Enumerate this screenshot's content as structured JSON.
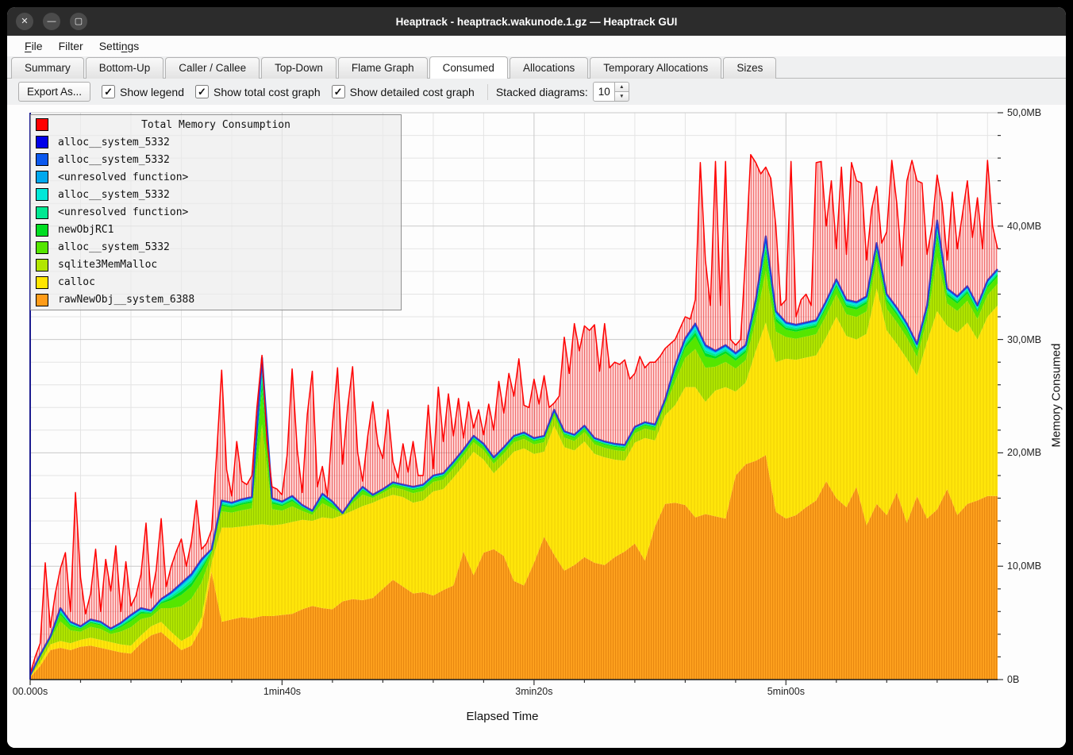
{
  "window": {
    "title": "Heaptrack - heaptrack.wakunode.1.gz — Heaptrack GUI",
    "controls": [
      {
        "name": "close",
        "glyph": "✕"
      },
      {
        "name": "minimize",
        "glyph": "—"
      },
      {
        "name": "maximize",
        "glyph": "▢"
      }
    ]
  },
  "menu": {
    "items": [
      {
        "label": "File",
        "underline": 0
      },
      {
        "label": "Filter",
        "underline": -1
      },
      {
        "label": "Settings",
        "underline": 5
      }
    ]
  },
  "tabs": {
    "active": "Consumed",
    "items": [
      "Summary",
      "Bottom-Up",
      "Caller / Callee",
      "Top-Down",
      "Flame Graph",
      "Consumed",
      "Allocations",
      "Temporary Allocations",
      "Sizes"
    ]
  },
  "toolbar": {
    "export_label": "Export As...",
    "check_glyph": "✓",
    "spin_up_icon": "▲",
    "spin_down_icon": "▼",
    "checkboxes": [
      {
        "label": "Show legend",
        "checked": true
      },
      {
        "label": "Show total cost graph",
        "checked": true
      },
      {
        "label": "Show detailed cost graph",
        "checked": true
      }
    ],
    "stacked_label": "Stacked diagrams:",
    "stacked_value": "10"
  },
  "legend": {
    "entries": [
      {
        "label": "Total Memory Consumption",
        "color": "#ff0000",
        "header": true
      },
      {
        "label": "alloc__system_5332",
        "color": "#0000e8"
      },
      {
        "label": "alloc__system_5332",
        "color": "#0a58ee"
      },
      {
        "label": "<unresolved function>",
        "color": "#00a8ee"
      },
      {
        "label": "alloc__system_5332",
        "color": "#00e8d8"
      },
      {
        "label": "<unresolved function>",
        "color": "#00e892"
      },
      {
        "label": "newObjRC1",
        "color": "#00dd22"
      },
      {
        "label": "alloc__system_5332",
        "color": "#55e600"
      },
      {
        "label": "sqlite3MemMalloc",
        "color": "#b2e600"
      },
      {
        "label": "calloc",
        "color": "#ffe600"
      },
      {
        "label": "rawNewObj__system_6388",
        "color": "#ff9c19"
      }
    ]
  },
  "axes": {
    "y_title": "Memory Consumed",
    "x_title": "Elapsed Time",
    "y_ticks": [
      {
        "label": "50,0MB",
        "mb": 50
      },
      {
        "label": "40,0MB",
        "mb": 40
      },
      {
        "label": "30,0MB",
        "mb": 30
      },
      {
        "label": "20,0MB",
        "mb": 20
      },
      {
        "label": "10,0MB",
        "mb": 10
      },
      {
        "label": "0B",
        "mb": 0
      }
    ],
    "x_ticks": [
      {
        "label": "00.000s",
        "s": 0
      },
      {
        "label": "1min40s",
        "s": 100
      },
      {
        "label": "3min20s",
        "s": 200
      },
      {
        "label": "5min00s",
        "s": 300
      }
    ]
  },
  "chart_data": {
    "type": "area",
    "title": "Total Memory Consumption",
    "x_unit": "seconds",
    "y_unit": "MB",
    "x_range": [
      0,
      384
    ],
    "y_range": [
      0,
      50
    ],
    "grid": {
      "x_minor_step_s": 20,
      "x_major_step_s": 100,
      "y_minor_step_mb": 2,
      "y_major_step_mb": 10,
      "visible": true
    },
    "legend_position": "top-left",
    "sample_step_s": 4,
    "series_stacked_tops_mb": {
      "rawNewObj__system_6388": [
        0.2,
        1.2,
        2.6,
        2.8,
        2.6,
        2.9,
        3.0,
        2.8,
        2.6,
        2.4,
        2.3,
        3.2,
        3.9,
        4.2,
        3.4,
        2.6,
        3.0,
        4.6,
        9.5,
        5.1,
        5.3,
        5.5,
        5.4,
        5.6,
        5.6,
        5.7,
        5.8,
        6.2,
        6.5,
        6.3,
        6.2,
        6.9,
        7.1,
        7.0,
        7.2,
        8.0,
        8.8,
        8.2,
        7.6,
        7.7,
        7.4,
        7.9,
        8.3,
        11.3,
        9.2,
        11.2,
        11.5,
        10.9,
        8.7,
        8.3,
        10.3,
        12.6,
        11.0,
        9.6,
        10.1,
        10.8,
        10.3,
        10.1,
        10.8,
        11.3,
        12.0,
        10.5,
        13.5,
        15.5,
        15.6,
        15.4,
        14.3,
        14.6,
        14.4,
        14.2,
        18.0,
        19.0,
        19.3,
        19.8,
        14.8,
        14.2,
        14.5,
        15.2,
        15.8,
        17.5,
        16.0,
        15.2,
        17.0,
        13.6,
        15.5,
        14.5,
        16.5,
        13.8,
        16.2,
        14.2,
        15.0,
        16.8,
        14.5,
        15.5,
        15.8,
        16.2,
        16.2
      ],
      "calloc": [
        0.3,
        1.5,
        3.1,
        3.4,
        3.2,
        3.5,
        3.7,
        3.5,
        3.3,
        3.1,
        3.0,
        3.9,
        4.7,
        5.1,
        4.2,
        3.4,
        3.9,
        5.5,
        10.3,
        13.4,
        13.4,
        13.5,
        13.6,
        13.7,
        13.6,
        13.7,
        13.9,
        14.1,
        14.0,
        14.3,
        14.2,
        14.5,
        14.9,
        15.3,
        15.6,
        16.0,
        16.3,
        16.1,
        15.6,
        15.8,
        16.6,
        16.8,
        17.8,
        18.9,
        20.1,
        19.4,
        18.2,
        19.1,
        20.1,
        20.4,
        19.9,
        20.1,
        22.4,
        20.5,
        20.2,
        21.0,
        19.9,
        19.6,
        19.4,
        19.3,
        20.9,
        21.3,
        21.1,
        23.3,
        24.2,
        25.8,
        25.8,
        24.5,
        25.5,
        25.8,
        25.4,
        26.2,
        29.0,
        31.5,
        28.0,
        28.3,
        28.2,
        28.4,
        28.6,
        30.2,
        32.0,
        30.3,
        30.0,
        30.5,
        34.5,
        30.8,
        29.6,
        28.3,
        26.8,
        29.8,
        32.5,
        31.2,
        30.6,
        31.5,
        30.0,
        32.0,
        33.0
      ],
      "all_series_top": [
        0.4,
        2.2,
        3.8,
        6.3,
        5.1,
        4.7,
        5.3,
        5.1,
        4.5,
        5.0,
        5.7,
        6.3,
        6.1,
        7.1,
        7.7,
        8.5,
        9.3,
        10.6,
        11.5,
        15.8,
        15.6,
        15.9,
        16.1,
        28.4,
        16.0,
        15.7,
        16.2,
        15.4,
        14.9,
        16.4,
        15.7,
        14.7,
        16.0,
        17.0,
        16.3,
        16.8,
        17.4,
        17.2,
        17.0,
        17.2,
        18.0,
        18.2,
        19.2,
        20.3,
        21.5,
        20.8,
        19.6,
        20.5,
        21.5,
        21.8,
        21.3,
        21.5,
        23.8,
        21.9,
        21.6,
        22.4,
        21.3,
        21.0,
        20.8,
        20.7,
        22.3,
        22.7,
        22.5,
        24.7,
        27.7,
        30.1,
        31.4,
        29.5,
        29.0,
        29.5,
        28.8,
        29.5,
        33.5,
        39.1,
        32.5,
        31.5,
        31.3,
        31.5,
        31.7,
        33.4,
        35.3,
        33.5,
        33.3,
        33.8,
        38.5,
        34.0,
        32.8,
        31.4,
        29.6,
        33.0,
        40.5,
        34.5,
        33.8,
        34.7,
        33.0,
        35.2,
        36.2
      ]
    },
    "bands_between_calloc_and_top": [
      {
        "name": "sqlite3MemMalloc",
        "color": "#b2e600",
        "frac": 0.6,
        "hatched": true
      },
      {
        "name": "alloc__system_5332",
        "color": "#55e600",
        "frac": 0.2
      },
      {
        "name": "newObjRC1",
        "color": "#00dd22",
        "frac": 0.06
      },
      {
        "name": "<unresolved function>",
        "color": "#00e892",
        "frac": 0.05
      },
      {
        "name": "alloc__system_5332",
        "color": "#00e8d8",
        "frac": 0.04
      },
      {
        "name": "<unresolved function>",
        "color": "#00a8ee",
        "frac": 0.05
      }
    ],
    "top_line": {
      "name": "alloc__system_5332",
      "color": "#0d3fe8"
    },
    "total": {
      "name": "Total Memory Consumption",
      "color": "#ff0000",
      "sample_step_s": 2,
      "values_mb": [
        0.5,
        2.0,
        3.2,
        10.3,
        4.6,
        7.6,
        9.8,
        11.2,
        6.0,
        16.5,
        9.0,
        5.8,
        7.6,
        11.5,
        6.0,
        10.6,
        7.8,
        11.8,
        6.0,
        10.4,
        6.5,
        7.4,
        9.3,
        13.8,
        7.2,
        9.6,
        14.2,
        8.2,
        10.0,
        11.3,
        12.4,
        10.0,
        12.2,
        15.8,
        11.5,
        12.0,
        13.2,
        19.8,
        27.3,
        18.5,
        16.2,
        21.0,
        17.5,
        17.2,
        18.0,
        24.0,
        28.6,
        21.0,
        17.0,
        16.8,
        16.3,
        19.8,
        27.4,
        20.3,
        16.5,
        23.4,
        27.2,
        17.0,
        18.8,
        16.2,
        22.5,
        27.5,
        19.0,
        24.0,
        27.6,
        20.0,
        17.5,
        21.5,
        24.5,
        20.8,
        19.5,
        23.8,
        19.2,
        17.8,
        20.8,
        18.3,
        21.0,
        18.0,
        18.0,
        24.2,
        18.6,
        25.8,
        21.0,
        25.2,
        21.5,
        24.8,
        21.3,
        24.5,
        22.2,
        23.8,
        21.6,
        24.3,
        22.0,
        26.3,
        23.5,
        27.0,
        25.0,
        28.3,
        24.2,
        24.0,
        26.5,
        24.3,
        26.8,
        24.0,
        24.4,
        25.0,
        30.2,
        27.0,
        31.4,
        29.0,
        31.2,
        30.8,
        31.3,
        27.2,
        31.4,
        27.5,
        28.0,
        27.8,
        28.2,
        26.5,
        27.0,
        28.5,
        27.5,
        28.0,
        28.0,
        28.5,
        29.2,
        29.6,
        30.0,
        31.0,
        32.0,
        31.8,
        33.5,
        45.6,
        37.0,
        33.0,
        45.7,
        33.0,
        45.7,
        30.0,
        29.5,
        30.0,
        37.5,
        46.3,
        45.6,
        44.6,
        45.2,
        44.2,
        40.0,
        33.0,
        33.5,
        45.7,
        32.0,
        33.5,
        34.0,
        33.0,
        45.6,
        45.7,
        40.0,
        44.0,
        38.0,
        45.2,
        37.5,
        45.6,
        44.0,
        43.8,
        37.0,
        41.5,
        43.5,
        38.5,
        39.5,
        45.8,
        42.0,
        36.5,
        44.0,
        45.8,
        44.0,
        43.8,
        37.5,
        40.0,
        44.5,
        42.0,
        37.0,
        43.0,
        38.0,
        41.0,
        44.0,
        39.0,
        42.5,
        38.0,
        45.8,
        40.0,
        38.0
      ]
    },
    "area_colors": {
      "rawNewObj__system_6388": "#ffa21e",
      "calloc": "#ffe60a"
    }
  }
}
